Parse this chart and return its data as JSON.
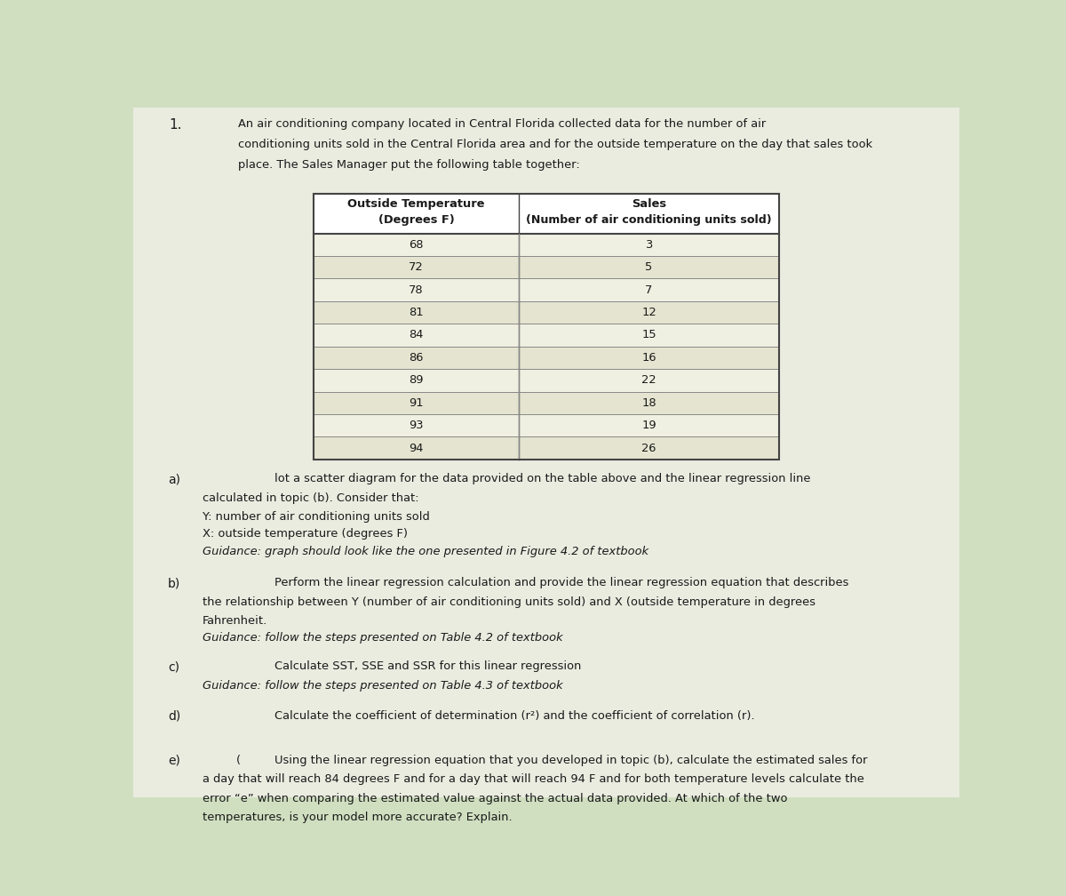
{
  "title_num": "1.",
  "intro_lines": [
    "An air conditioning company located in Central Florida collected data for the number of air",
    "conditioning units sold in the Central Florida area and for the outside temperature on the day that sales took",
    "place. The Sales Manager put the following table together:"
  ],
  "col1_header1": "Outside Temperature",
  "col1_header2": "(Degrees F)",
  "col2_header1": "Sales",
  "col2_header2": "(Number of air conditioning units sold)",
  "table_data": [
    [
      68,
      3
    ],
    [
      72,
      5
    ],
    [
      78,
      7
    ],
    [
      81,
      12
    ],
    [
      84,
      15
    ],
    [
      86,
      16
    ],
    [
      89,
      22
    ],
    [
      91,
      18
    ],
    [
      93,
      19
    ],
    [
      94,
      26
    ]
  ],
  "part_a_label": "a)",
  "part_a_line1": "lot a scatter diagram for the data provided on the table above and the linear regression line",
  "part_a_line2": "calculated in topic (b). Consider that:",
  "part_a_line3": "Y: number of air conditioning units sold",
  "part_a_line4": "X: outside temperature (degrees F)",
  "part_a_guidance": "Guidance: graph should look like the one presented in Figure 4.2 of textbook",
  "part_b_label": "b)",
  "part_b_line1": "Perform the linear regression calculation and provide the linear regression equation that describes",
  "part_b_line2": "the relationship between Y (number of air conditioning units sold) and X (outside temperature in degrees",
  "part_b_line3": "Fahrenheit.",
  "part_b_guidance": "Guidance: follow the steps presented on Table 4.2 of textbook",
  "part_c_label": "c)",
  "part_c_line1": "Calculate SST, SSE and SSR for this linear regression",
  "part_c_guidance": "Guidance: follow the steps presented on Table 4.3 of textbook",
  "part_d_label": "d)",
  "part_d_line1": "Calculate the coefficient of determination (r²) and the coefficient of correlation (r).",
  "part_e_label": "e)",
  "part_e_prefix": "(",
  "part_e_line1": "Using the linear regression equation that you developed in topic (b), calculate the estimated sales for",
  "part_e_line2": "a day that will reach 84 degrees F and for a day that will reach 94 F and for both temperature levels calculate the",
  "part_e_line3": "error “e” when comparing the estimated value against the actual data provided. At which of the two",
  "part_e_line4": "temperatures, is your model more accurate? Explain.",
  "bg_color": "#d0dfc0",
  "page_color": "#eaece0",
  "text_color": "#1a1a1a",
  "table_border_color": "#444444",
  "table_line_color": "#888888",
  "row_color_even": "#f0f0e2",
  "row_color_odd": "#e4e4d0",
  "header_color": "#ffffff"
}
